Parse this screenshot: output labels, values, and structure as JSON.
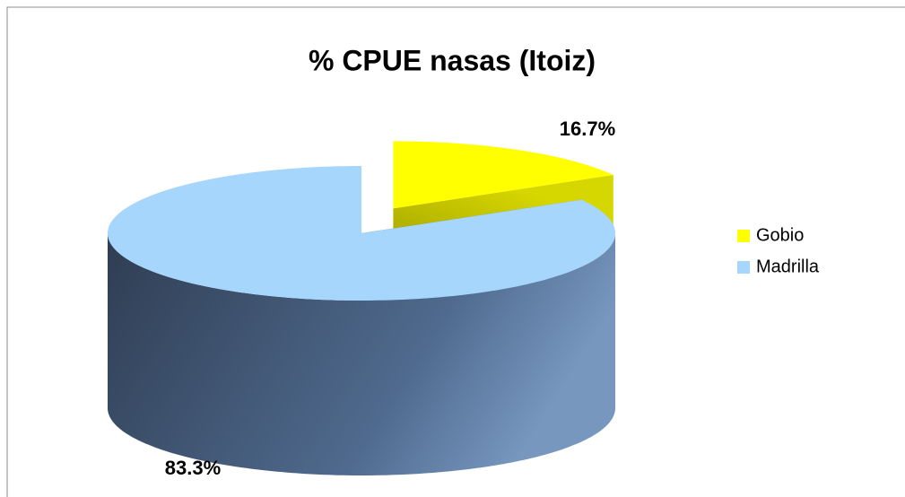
{
  "chart_data": {
    "type": "pie",
    "title": "% CPUE nasas (Itoiz)",
    "categories": [
      "Gobio",
      "Madrilla"
    ],
    "values": [
      16.7,
      83.3
    ],
    "value_labels": [
      "16.7%",
      "83.3%"
    ],
    "colors": [
      "#ffff00",
      "#a6d6fb"
    ],
    "legend": "right"
  }
}
